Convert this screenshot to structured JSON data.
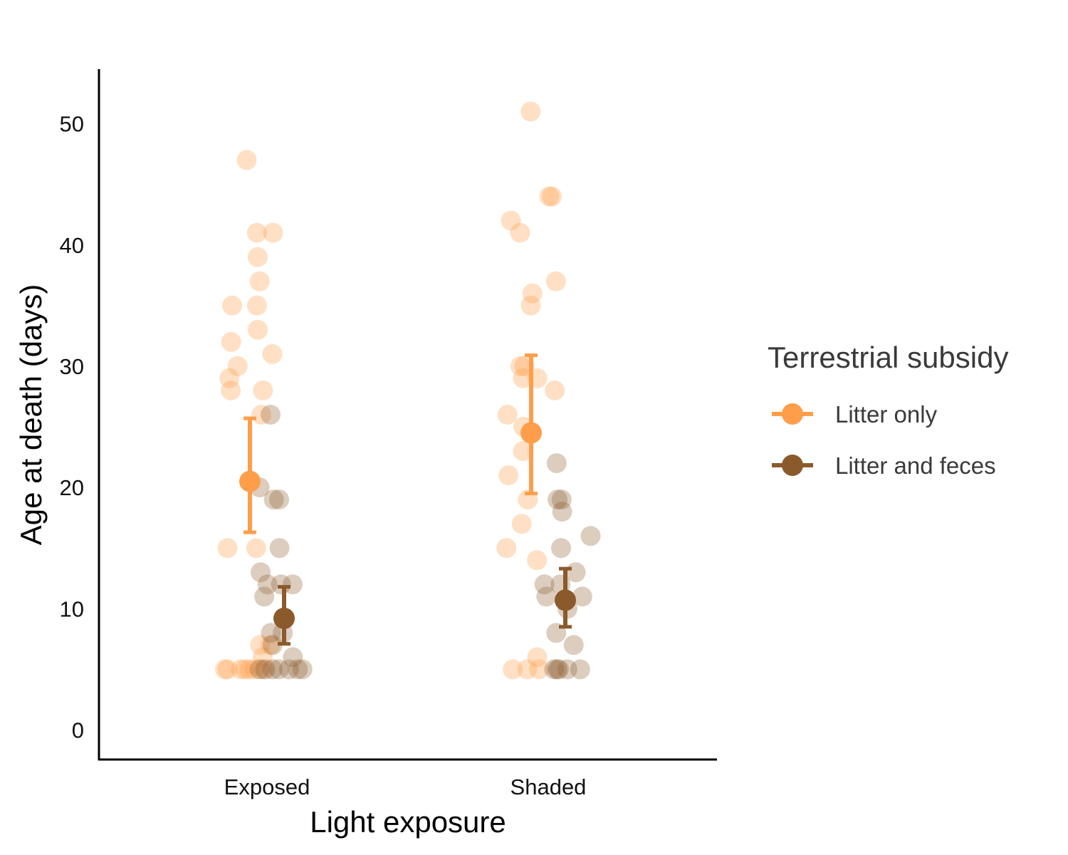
{
  "chart_data": {
    "type": "scatter",
    "title": "",
    "xlabel": "Light exposure",
    "ylabel": "Age at death (days)",
    "categories": [
      "Exposed",
      "Shaded"
    ],
    "ylim": [
      -2.5,
      54.5
    ],
    "yticks": [
      0,
      10,
      20,
      30,
      40,
      50
    ],
    "grid": false,
    "legend": {
      "title": "Terrestrial subsidy",
      "position": "right"
    },
    "series": [
      {
        "name": "Litter only",
        "color": "#FF9E4A",
        "mean": [
          20.5,
          24.5
        ],
        "error_low": [
          16.3,
          19.5
        ],
        "error_high": [
          25.7,
          30.9
        ],
        "points": {
          "Exposed": [
            47,
            41,
            41,
            39,
            37,
            35,
            35,
            33,
            32,
            31,
            30,
            29,
            28,
            28,
            26,
            15,
            15,
            7,
            7,
            6,
            5,
            5,
            5,
            5,
            5,
            5,
            5
          ],
          "Shaded": [
            51,
            44,
            44,
            42,
            41,
            37,
            36,
            35,
            30,
            30,
            29,
            29,
            28,
            26,
            25,
            23,
            21,
            19,
            17,
            15,
            14,
            6,
            5,
            5,
            5
          ]
        }
      },
      {
        "name": "Litter and feces",
        "color": "#8B5A2B",
        "mean": [
          9.2,
          10.7
        ],
        "error_low": [
          7.1,
          8.5
        ],
        "error_high": [
          11.8,
          13.3
        ],
        "points": {
          "Exposed": [
            26,
            20,
            19,
            19,
            15,
            13,
            12,
            12,
            12,
            11,
            8,
            8,
            7,
            6,
            5,
            5,
            5,
            5,
            5,
            5,
            5
          ],
          "Shaded": [
            22,
            19,
            19,
            18,
            16,
            15,
            13,
            12,
            12,
            11,
            11,
            10,
            8,
            7,
            5,
            5,
            5,
            5,
            5
          ]
        }
      }
    ]
  }
}
